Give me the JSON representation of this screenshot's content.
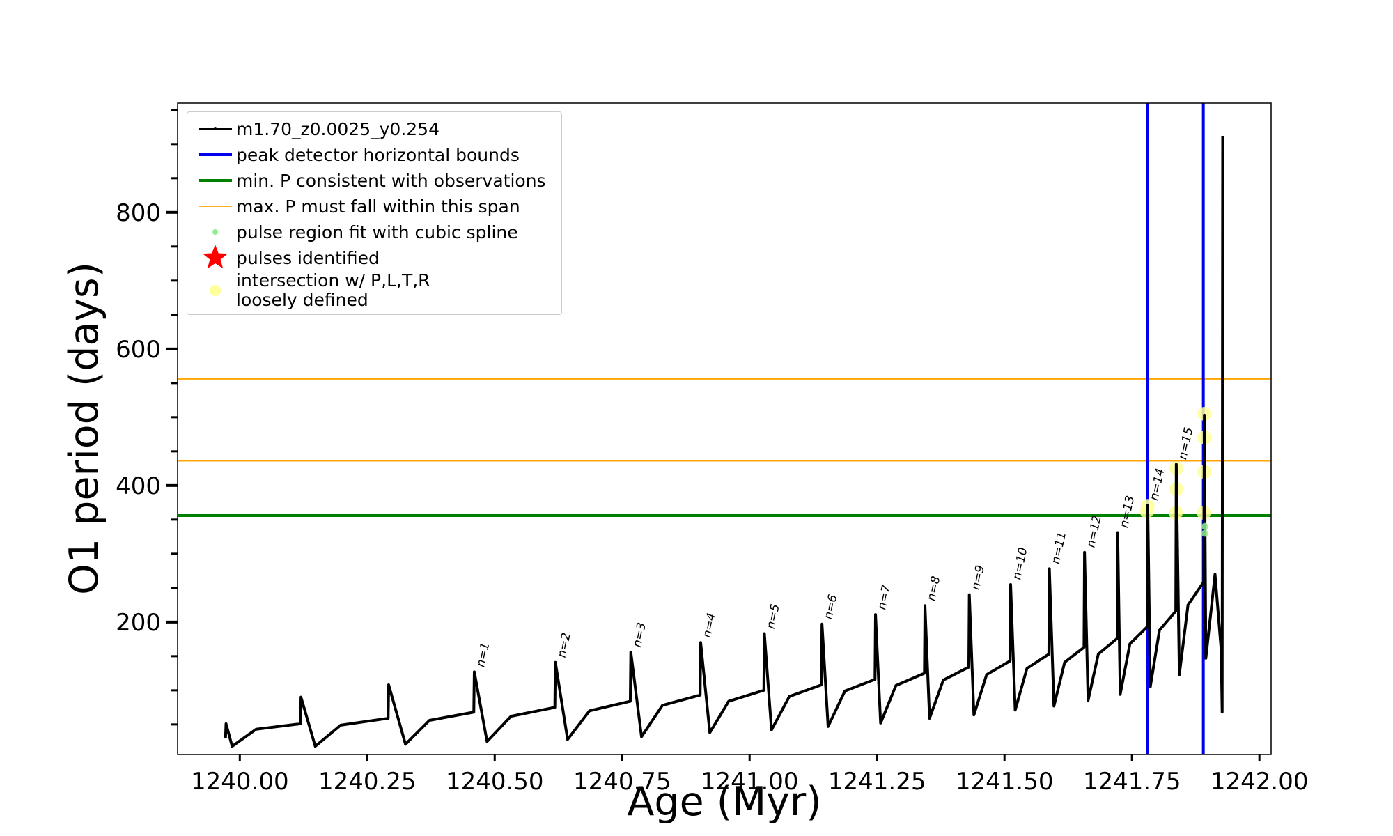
{
  "chart_data": {
    "type": "line",
    "xlabel": "Age (Myr)",
    "ylabel": "O1 period (days)",
    "xlim": [
      1239.878,
      1242.023
    ],
    "ylim": [
      6,
      960
    ],
    "xticks": [
      {
        "value": 1240.0,
        "label": "1240.00"
      },
      {
        "value": 1240.25,
        "label": "1240.25"
      },
      {
        "value": 1240.5,
        "label": "1240.50"
      },
      {
        "value": 1240.75,
        "label": "1240.75"
      },
      {
        "value": 1241.0,
        "label": "1241.00"
      },
      {
        "value": 1241.25,
        "label": "1241.25"
      },
      {
        "value": 1241.5,
        "label": "1241.50"
      },
      {
        "value": 1241.75,
        "label": "1241.75"
      },
      {
        "value": 1242.0,
        "label": "1242.00"
      }
    ],
    "yticks": [
      200,
      400,
      600,
      800
    ],
    "yminor": [
      50,
      100,
      150,
      250,
      300,
      350,
      450,
      500,
      550,
      650,
      700,
      750,
      850,
      900,
      950
    ],
    "legend": "upper left",
    "series": [
      {
        "name": "m1.70_z0.0025_y0.254",
        "color": "#000000",
        "x": [
          1239.972,
          1239.973,
          1239.985,
          1240.032,
          1240.119,
          1240.12,
          1240.148,
          1240.198,
          1240.291,
          1240.292,
          1240.325,
          1240.372,
          1240.459,
          1240.46,
          1240.485,
          1240.532,
          1240.618,
          1240.619,
          1240.643,
          1240.686,
          1240.766,
          1240.767,
          1240.788,
          1240.829,
          1240.903,
          1240.904,
          1240.922,
          1240.959,
          1241.028,
          1241.029,
          1241.043,
          1241.078,
          1241.141,
          1241.142,
          1241.154,
          1241.187,
          1241.246,
          1241.247,
          1241.257,
          1241.287,
          1241.343,
          1241.344,
          1241.353,
          1241.38,
          1241.43,
          1241.431,
          1241.44,
          1241.465,
          1241.511,
          1241.512,
          1241.521,
          1241.544,
          1241.587,
          1241.588,
          1241.597,
          1241.618,
          1241.656,
          1241.657,
          1241.664,
          1241.684,
          1241.721,
          1241.722,
          1241.727,
          1241.746,
          1241.78,
          1241.781,
          1241.786,
          1241.804,
          1241.836,
          1241.837,
          1241.843,
          1241.86,
          1241.891,
          1241.892,
          1241.895,
          1241.913,
          1241.925,
          1241.927,
          1241.928
        ],
        "values": [
          30,
          51,
          18,
          43,
          51,
          90,
          18,
          49,
          59,
          108,
          21,
          56,
          68,
          127,
          25,
          62,
          75,
          141,
          28,
          70,
          84,
          156,
          32,
          78,
          93,
          170,
          38,
          84,
          100,
          183,
          42,
          91,
          108,
          197,
          47,
          99,
          116,
          211,
          52,
          107,
          125,
          224,
          59,
          115,
          134,
          240,
          64,
          123,
          143,
          255,
          71,
          132,
          153,
          278,
          77,
          141,
          163,
          302,
          85,
          153,
          176,
          331,
          94,
          168,
          193,
          371,
          105,
          188,
          216,
          431,
          123,
          225,
          259,
          503,
          147,
          270,
          160,
          68,
          912
        ]
      }
    ],
    "vlines": {
      "name": "peak detector horizontal bounds",
      "color": "#0000ee",
      "x": [
        1241.781,
        1241.89
      ]
    },
    "hlines": [
      {
        "name": "min. P consistent with observations",
        "color": "#008000",
        "values": [
          356
        ]
      },
      {
        "name": "max. P must fall within this span",
        "color": "#ffa500",
        "values": [
          436,
          556
        ]
      }
    ],
    "scatter": [
      {
        "name": "pulse region fit with cubic spline",
        "color": "#90ee90",
        "marker": "dot",
        "x": [
          1241.893,
          1241.893
        ],
        "values": [
          330,
          340
        ]
      },
      {
        "name": "pulses identified",
        "color": "#ff0000",
        "marker": "star",
        "x": [],
        "values": []
      },
      {
        "name": "intersection w/ P,L,T,R\nloosely defined",
        "color": "#ffff99",
        "marker": "big",
        "x": [
          1241.779,
          1241.781,
          1241.836,
          1241.837,
          1241.837,
          1241.891,
          1241.892,
          1241.892,
          1241.892
        ],
        "values": [
          362,
          370,
          360,
          395,
          425,
          360,
          420,
          470,
          505
        ]
      }
    ],
    "annotations": [
      {
        "text": "n=1",
        "x": 1240.46,
        "y": 127
      },
      {
        "text": "n=2",
        "x": 1240.619,
        "y": 141
      },
      {
        "text": "n=3",
        "x": 1240.767,
        "y": 156
      },
      {
        "text": "n=4",
        "x": 1240.904,
        "y": 170
      },
      {
        "text": "n=5",
        "x": 1241.029,
        "y": 183
      },
      {
        "text": "n=6",
        "x": 1241.142,
        "y": 197
      },
      {
        "text": "n=7",
        "x": 1241.247,
        "y": 211
      },
      {
        "text": "n=8",
        "x": 1241.344,
        "y": 224
      },
      {
        "text": "n=9",
        "x": 1241.431,
        "y": 240
      },
      {
        "text": "n=10",
        "x": 1241.512,
        "y": 255
      },
      {
        "text": "n=11",
        "x": 1241.588,
        "y": 278
      },
      {
        "text": "n=12",
        "x": 1241.657,
        "y": 302
      },
      {
        "text": "n=13",
        "x": 1241.722,
        "y": 331
      },
      {
        "text": "n=14",
        "x": 1241.781,
        "y": 371
      },
      {
        "text": "n=15",
        "x": 1241.837,
        "y": 431
      }
    ]
  }
}
